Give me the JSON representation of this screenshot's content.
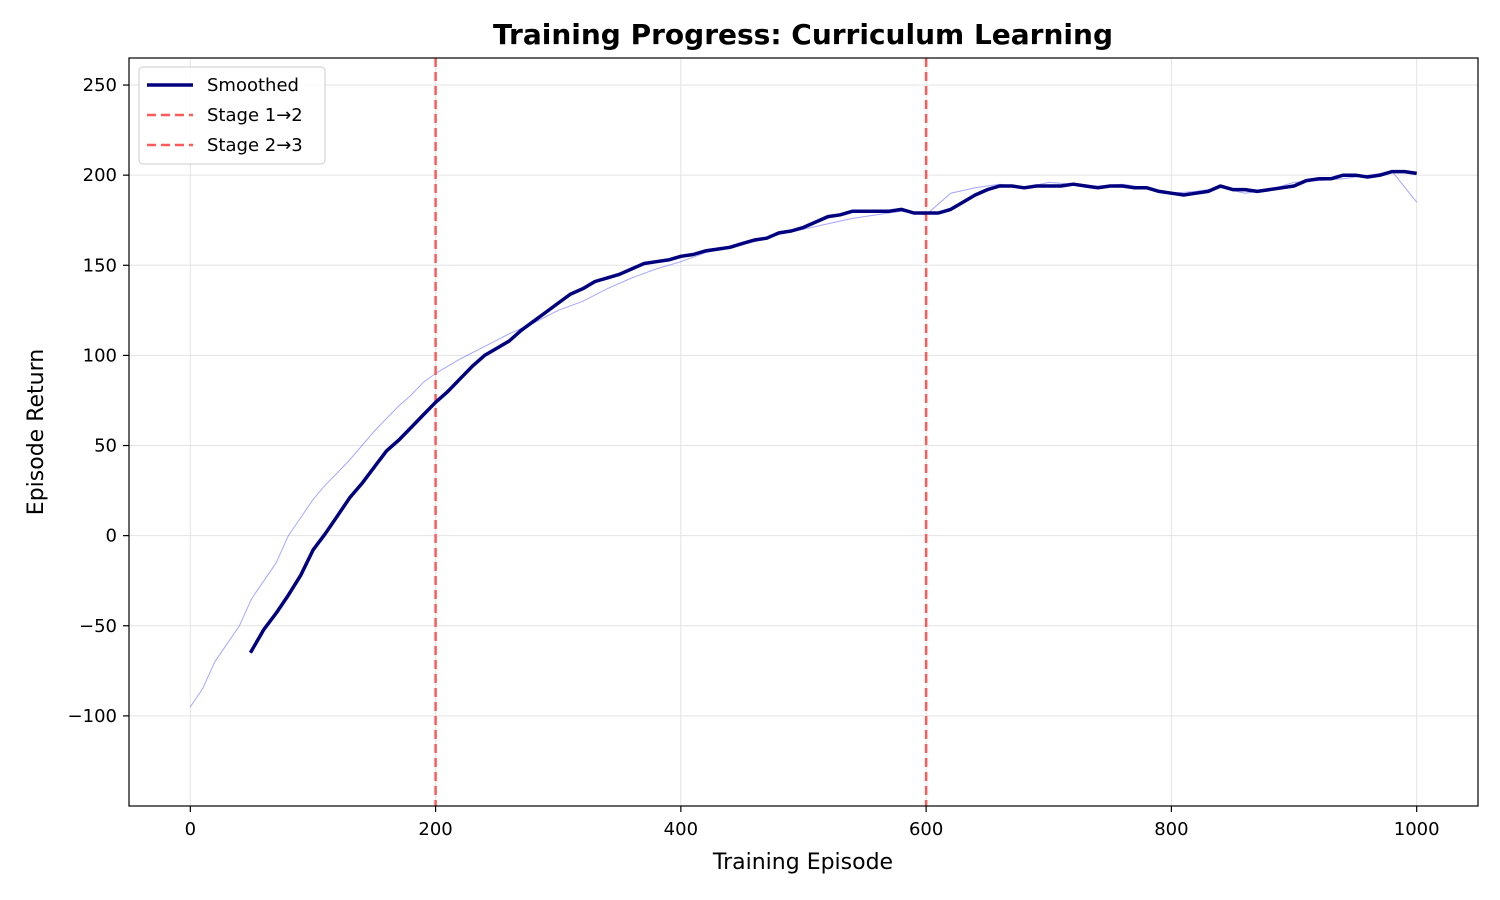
{
  "chart_data": {
    "type": "line",
    "title": "Training Progress: Curriculum Learning",
    "xlabel": "Training Episode",
    "ylabel": "Episode Return",
    "xlim": [
      -50,
      1050
    ],
    "ylim": [
      -150,
      265
    ],
    "xticks": [
      0,
      200,
      400,
      600,
      800,
      1000
    ],
    "yticks": [
      -100,
      -50,
      0,
      50,
      100,
      150,
      200,
      250
    ],
    "grid": true,
    "legend_position": "top-left",
    "colors": {
      "raw": "#0000ff",
      "smoothed": "#00007f",
      "stage_line": "#ff5a5a"
    },
    "series": [
      {
        "name": "",
        "role": "raw",
        "x": [
          0,
          10,
          20,
          30,
          40,
          50,
          60,
          70,
          80,
          90,
          100,
          110,
          120,
          130,
          140,
          150,
          160,
          170,
          180,
          190,
          200,
          220,
          240,
          260,
          280,
          300,
          320,
          340,
          360,
          380,
          400,
          420,
          440,
          460,
          480,
          500,
          520,
          540,
          560,
          580,
          600,
          620,
          640,
          660,
          680,
          700,
          720,
          740,
          760,
          780,
          800,
          820,
          840,
          860,
          880,
          900,
          920,
          940,
          960,
          980,
          1000
        ],
        "y": [
          -95,
          -85,
          -70,
          -60,
          -50,
          -35,
          -25,
          -15,
          0,
          10,
          20,
          28,
          35,
          42,
          50,
          58,
          65,
          72,
          78,
          85,
          90,
          98,
          105,
          112,
          118,
          125,
          130,
          137,
          143,
          148,
          152,
          157,
          160,
          163,
          167,
          170,
          173,
          176,
          178,
          180,
          178,
          190,
          193,
          195,
          193,
          196,
          195,
          194,
          195,
          193,
          190,
          191,
          193,
          190,
          192,
          196,
          197,
          198,
          200,
          202,
          185
        ]
      },
      {
        "name": "Smoothed",
        "role": "smoothed",
        "x": [
          49,
          60,
          70,
          80,
          90,
          100,
          110,
          120,
          130,
          140,
          150,
          160,
          170,
          180,
          190,
          200,
          210,
          220,
          230,
          240,
          250,
          260,
          270,
          280,
          290,
          300,
          310,
          320,
          330,
          340,
          350,
          360,
          370,
          380,
          390,
          400,
          410,
          420,
          430,
          440,
          450,
          460,
          470,
          480,
          490,
          500,
          510,
          520,
          530,
          540,
          550,
          560,
          570,
          580,
          590,
          600,
          610,
          620,
          630,
          640,
          650,
          660,
          670,
          680,
          690,
          700,
          710,
          720,
          730,
          740,
          750,
          760,
          770,
          780,
          790,
          800,
          810,
          820,
          830,
          840,
          850,
          860,
          870,
          880,
          890,
          900,
          910,
          920,
          930,
          940,
          950,
          960,
          970,
          980,
          990,
          1000
        ],
        "y": [
          -65,
          -52,
          -43,
          -33,
          -22,
          -8,
          1,
          11,
          21,
          29,
          38,
          47,
          53,
          60,
          67,
          74,
          80,
          87,
          94,
          100,
          104,
          108,
          114,
          119,
          124,
          129,
          134,
          137,
          141,
          143,
          145,
          148,
          151,
          152,
          153,
          155,
          156,
          158,
          159,
          160,
          162,
          164,
          165,
          168,
          169,
          171,
          174,
          177,
          178,
          180,
          180,
          180,
          180,
          181,
          179,
          179,
          179,
          181,
          185,
          189,
          192,
          194,
          194,
          193,
          194,
          194,
          194,
          195,
          194,
          193,
          194,
          194,
          193,
          193,
          191,
          190,
          189,
          190,
          191,
          194,
          192,
          192,
          191,
          192,
          193,
          194,
          197,
          198,
          198,
          200,
          200,
          199,
          200,
          202,
          202,
          201
        ]
      }
    ],
    "vlines": [
      {
        "x": 200,
        "label": "Stage 1→2"
      },
      {
        "x": 600,
        "label": "Stage 2→3"
      }
    ]
  }
}
